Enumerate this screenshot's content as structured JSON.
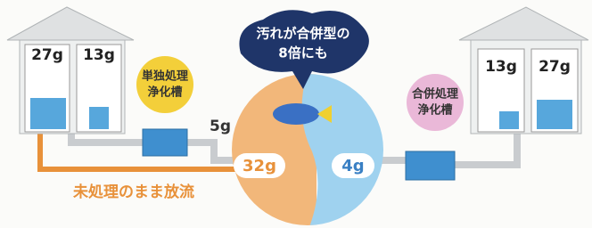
{
  "left_house": {
    "rooms": [
      "27g",
      "13g"
    ]
  },
  "single_tank": {
    "lines": [
      "単独処理",
      "浄化槽"
    ]
  },
  "single_tank_output": "5g",
  "cloud": {
    "lines": [
      "汚れが合併型の",
      "8倍にも"
    ]
  },
  "untreated_amount": "32g",
  "combined_amount": "4g",
  "combined_tank": {
    "lines": [
      "合併処理",
      "浄化槽"
    ]
  },
  "right_house": {
    "rooms": [
      "13g",
      "27g"
    ]
  },
  "untreated_label": "未処理のまま放流"
}
